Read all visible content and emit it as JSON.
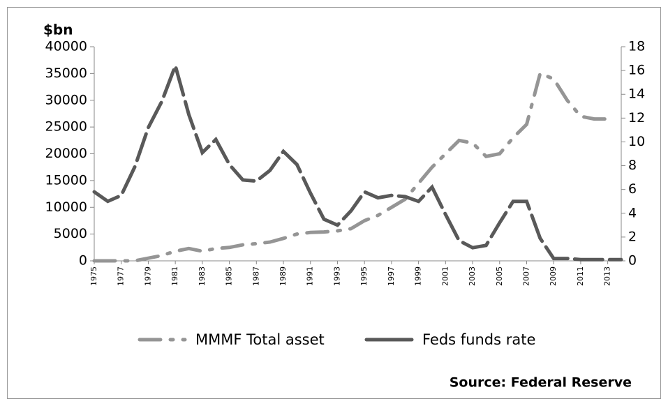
{
  "chart_data": {
    "type": "line",
    "y_label": "$bn",
    "source": "Source: Federal Reserve",
    "x": [
      1975,
      1976,
      1977,
      1978,
      1979,
      1980,
      1981,
      1982,
      1983,
      1984,
      1985,
      1986,
      1987,
      1988,
      1989,
      1990,
      1991,
      1992,
      1993,
      1994,
      1995,
      1996,
      1997,
      1998,
      1999,
      2000,
      2001,
      2002,
      2003,
      2004,
      2005,
      2006,
      2007,
      2008,
      2009,
      2010,
      2011,
      2012,
      2013,
      2014
    ],
    "xlim": [
      1975,
      2014
    ],
    "xticks": [
      1975,
      1977,
      1979,
      1981,
      1983,
      1985,
      1987,
      1989,
      1991,
      1993,
      1995,
      1997,
      1999,
      2001,
      2003,
      2005,
      2007,
      2009,
      2011,
      2013
    ],
    "ylim": [
      0,
      40000
    ],
    "yticks": [
      0,
      5000,
      10000,
      15000,
      20000,
      25000,
      30000,
      35000,
      40000
    ],
    "y2lim": [
      0,
      18
    ],
    "y2ticks": [
      0,
      2,
      4,
      6,
      8,
      10,
      12,
      14,
      16,
      18
    ],
    "series": [
      {
        "name": "MMMF Total asset",
        "color": "#959595",
        "dash": "dashdot",
        "values": [
          0,
          0,
          0,
          0,
          500,
          1000,
          1800,
          2300,
          1800,
          2300,
          2500,
          3000,
          3200,
          3500,
          4200,
          5000,
          5300,
          5400,
          5600,
          6000,
          7500,
          8500,
          10000,
          11500,
          14500,
          17500,
          20000,
          22500,
          22000,
          19500,
          20000,
          23000,
          25500,
          35000,
          34000,
          30000,
          27000,
          26500,
          26500,
          null
        ]
      },
      {
        "name": "Feds funds rate",
        "color": "#595959",
        "dash": "dash",
        "axis": "y2",
        "values": [
          5.8,
          5.0,
          5.5,
          7.9,
          11.2,
          13.4,
          16.4,
          12.3,
          9.1,
          10.2,
          8.1,
          6.8,
          6.7,
          7.6,
          9.2,
          8.1,
          5.7,
          3.5,
          3.0,
          4.2,
          5.8,
          5.3,
          5.5,
          5.4,
          5.0,
          6.2,
          3.9,
          1.7,
          1.1,
          1.3,
          3.2,
          5.0,
          5.0,
          1.9,
          0.2,
          0.2,
          0.1,
          0.1,
          0.1,
          0.1
        ]
      }
    ],
    "legend": "bottom"
  }
}
